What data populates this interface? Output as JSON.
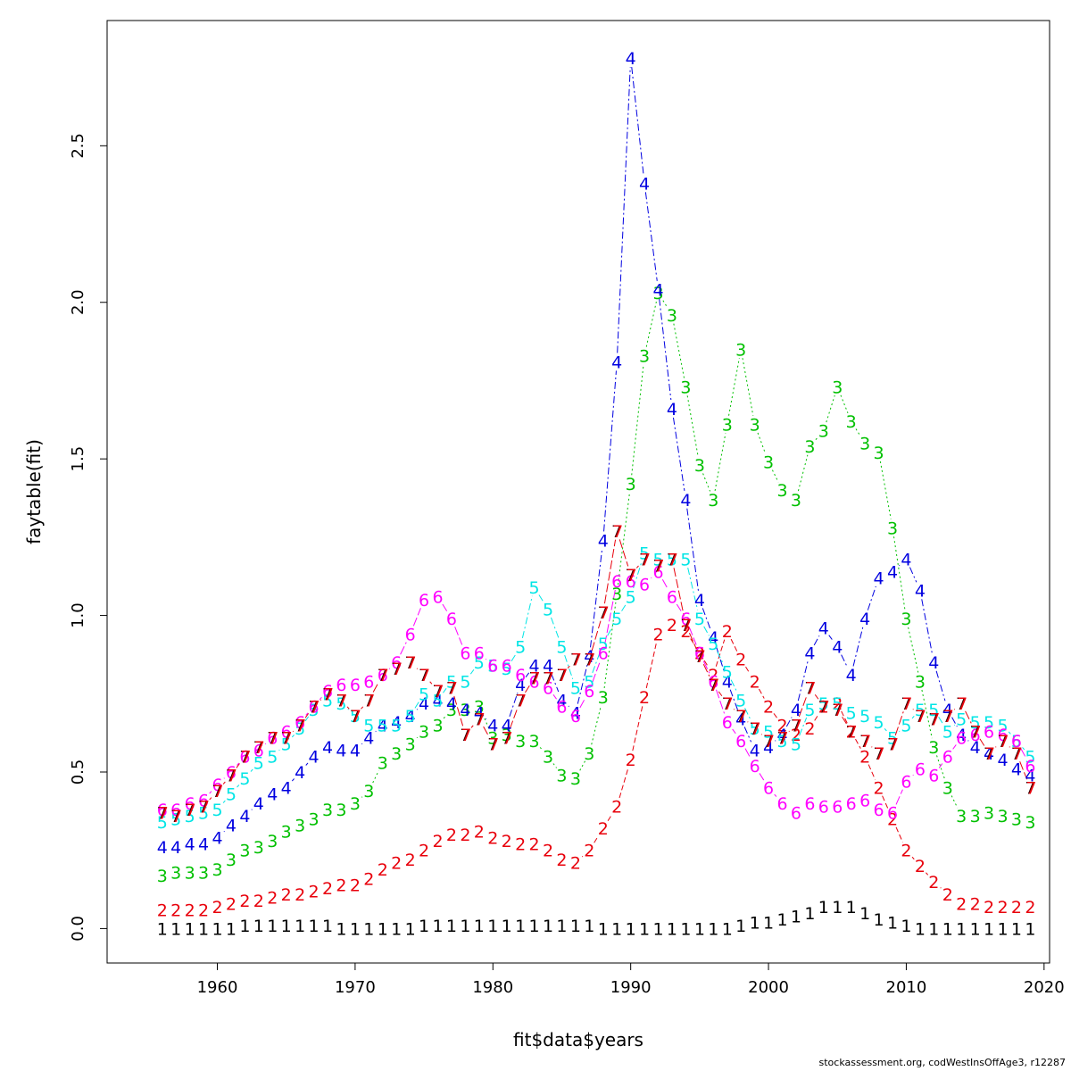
{
  "chart_data": {
    "type": "line",
    "xlabel": "fit$data$years",
    "ylabel": "faytable(fit)",
    "xlim": [
      1952.0,
      2020.4
    ],
    "ylim": [
      -0.11,
      2.9
    ],
    "x_ticks": [
      1960,
      1970,
      1980,
      1990,
      2000,
      2010,
      2020
    ],
    "y_ticks": [
      0.0,
      0.5,
      1.0,
      1.5,
      2.0,
      2.5
    ],
    "y_tick_labels": [
      "0.0",
      "0.5",
      "1.0",
      "1.5",
      "2.0",
      "2.5"
    ],
    "x": [
      1956,
      1957,
      1958,
      1959,
      1960,
      1961,
      1962,
      1963,
      1964,
      1965,
      1966,
      1967,
      1968,
      1969,
      1970,
      1971,
      1972,
      1973,
      1974,
      1975,
      1976,
      1977,
      1978,
      1979,
      1980,
      1981,
      1982,
      1983,
      1984,
      1985,
      1986,
      1987,
      1988,
      1989,
      1990,
      1991,
      1992,
      1993,
      1994,
      1995,
      1996,
      1997,
      1998,
      1999,
      2000,
      2001,
      2002,
      2003,
      2004,
      2005,
      2006,
      2007,
      2008,
      2009,
      2010,
      2011,
      2012,
      2013,
      2014,
      2015,
      2016,
      2017,
      2018,
      2019
    ],
    "series": [
      {
        "name": "1",
        "color": "#000000",
        "dash": "2,3",
        "values": [
          0.0,
          0.0,
          0.0,
          0.0,
          0.0,
          0.0,
          0.01,
          0.01,
          0.01,
          0.01,
          0.01,
          0.01,
          0.01,
          0.0,
          0.0,
          0.0,
          0.0,
          0.0,
          0.0,
          0.01,
          0.01,
          0.01,
          0.01,
          0.01,
          0.01,
          0.01,
          0.01,
          0.01,
          0.01,
          0.01,
          0.01,
          0.01,
          0.0,
          0.0,
          0.0,
          0.0,
          0.0,
          0.0,
          0.0,
          0.0,
          0.0,
          0.0,
          0.01,
          0.02,
          0.02,
          0.03,
          0.04,
          0.05,
          0.07,
          0.07,
          0.07,
          0.05,
          0.03,
          0.02,
          0.01,
          0.0,
          0.0,
          0.0,
          0.0,
          0.0,
          0.0,
          0.0,
          0.0,
          0.0
        ]
      },
      {
        "name": "2",
        "color": "#e8000b",
        "dash": "6,3",
        "values": [
          0.06,
          0.06,
          0.06,
          0.06,
          0.07,
          0.08,
          0.09,
          0.09,
          0.1,
          0.11,
          0.11,
          0.12,
          0.13,
          0.14,
          0.14,
          0.16,
          0.19,
          0.21,
          0.22,
          0.25,
          0.28,
          0.3,
          0.3,
          0.31,
          0.29,
          0.28,
          0.27,
          0.27,
          0.25,
          0.22,
          0.21,
          0.25,
          0.32,
          0.39,
          0.54,
          0.74,
          0.94,
          0.97,
          0.95,
          0.88,
          0.81,
          0.95,
          0.86,
          0.79,
          0.71,
          0.65,
          0.62,
          0.64,
          0.71,
          0.72,
          0.63,
          0.55,
          0.45,
          0.35,
          0.25,
          0.2,
          0.15,
          0.11,
          0.08,
          0.08,
          0.07,
          0.07,
          0.07,
          0.07
        ]
      },
      {
        "name": "3",
        "color": "#00c000",
        "dash": "2,3",
        "values": [
          0.17,
          0.18,
          0.18,
          0.18,
          0.19,
          0.22,
          0.25,
          0.26,
          0.28,
          0.31,
          0.33,
          0.35,
          0.38,
          0.38,
          0.4,
          0.44,
          0.53,
          0.56,
          0.59,
          0.63,
          0.65,
          0.7,
          0.7,
          0.71,
          0.61,
          0.62,
          0.6,
          0.6,
          0.55,
          0.49,
          0.48,
          0.56,
          0.74,
          1.07,
          1.42,
          1.83,
          2.03,
          1.96,
          1.73,
          1.48,
          1.37,
          1.61,
          1.85,
          1.61,
          1.49,
          1.4,
          1.37,
          1.54,
          1.59,
          1.73,
          1.62,
          1.55,
          1.52,
          1.28,
          0.99,
          0.79,
          0.58,
          0.45,
          0.36,
          0.36,
          0.37,
          0.36,
          0.35,
          0.34
        ]
      },
      {
        "name": "4",
        "color": "#0000e0",
        "dash": "8,3,2,3",
        "values": [
          0.26,
          0.26,
          0.27,
          0.27,
          0.29,
          0.33,
          0.36,
          0.4,
          0.43,
          0.45,
          0.5,
          0.55,
          0.58,
          0.57,
          0.57,
          0.61,
          0.65,
          0.66,
          0.68,
          0.72,
          0.73,
          0.72,
          0.7,
          0.69,
          0.65,
          0.65,
          0.78,
          0.84,
          0.84,
          0.73,
          0.69,
          0.87,
          1.24,
          1.81,
          2.78,
          2.38,
          2.04,
          1.66,
          1.37,
          1.05,
          0.93,
          0.79,
          0.67,
          0.57,
          0.58,
          0.62,
          0.7,
          0.88,
          0.96,
          0.9,
          0.81,
          0.99,
          1.12,
          1.14,
          1.18,
          1.08,
          0.85,
          0.7,
          0.62,
          0.58,
          0.56,
          0.54,
          0.51,
          0.49
        ]
      },
      {
        "name": "5",
        "color": "#00e5e5",
        "dash": "8,3,2,3",
        "values": [
          0.34,
          0.35,
          0.36,
          0.37,
          0.38,
          0.43,
          0.48,
          0.53,
          0.55,
          0.59,
          0.64,
          0.7,
          0.73,
          0.72,
          0.68,
          0.65,
          0.65,
          0.65,
          0.68,
          0.75,
          0.73,
          0.79,
          0.79,
          0.85,
          0.84,
          0.83,
          0.9,
          1.09,
          1.02,
          0.9,
          0.77,
          0.79,
          0.91,
          0.99,
          1.06,
          1.2,
          1.18,
          1.18,
          1.18,
          0.99,
          0.91,
          0.82,
          0.73,
          0.64,
          0.63,
          0.6,
          0.59,
          0.7,
          0.72,
          0.72,
          0.69,
          0.68,
          0.66,
          0.61,
          0.65,
          0.7,
          0.7,
          0.63,
          0.67,
          0.66,
          0.66,
          0.65,
          0.6,
          0.55
        ]
      },
      {
        "name": "6",
        "color": "#ff00ff",
        "dash": "10,3",
        "values": [
          0.38,
          0.38,
          0.4,
          0.41,
          0.46,
          0.5,
          0.55,
          0.57,
          0.61,
          0.63,
          0.66,
          0.71,
          0.76,
          0.78,
          0.78,
          0.79,
          0.81,
          0.85,
          0.94,
          1.05,
          1.06,
          0.99,
          0.88,
          0.88,
          0.84,
          0.84,
          0.81,
          0.79,
          0.77,
          0.71,
          0.68,
          0.76,
          0.88,
          1.11,
          1.11,
          1.1,
          1.14,
          1.06,
          0.99,
          0.88,
          0.79,
          0.66,
          0.6,
          0.52,
          0.45,
          0.4,
          0.37,
          0.4,
          0.39,
          0.39,
          0.4,
          0.41,
          0.38,
          0.37,
          0.47,
          0.51,
          0.49,
          0.55,
          0.61,
          0.62,
          0.63,
          0.62,
          0.6,
          0.52
        ]
      },
      {
        "name": "7",
        "color": "#e8000b",
        "dash": "10,3",
        "values": [
          0.37,
          0.36,
          0.38,
          0.39,
          0.44,
          0.49,
          0.55,
          0.58,
          0.61,
          0.61,
          0.65,
          0.71,
          0.75,
          0.73,
          0.68,
          0.73,
          0.81,
          0.83,
          0.85,
          0.81,
          0.76,
          0.77,
          0.62,
          0.67,
          0.59,
          0.61,
          0.73,
          0.8,
          0.8,
          0.81,
          0.86,
          0.86,
          1.01,
          1.27,
          1.13,
          1.18,
          1.16,
          1.18,
          0.97,
          0.87,
          0.78,
          0.72,
          0.68,
          0.64,
          0.6,
          0.61,
          0.65,
          0.77,
          0.71,
          0.7,
          0.63,
          0.6,
          0.56,
          0.59,
          0.72,
          0.68,
          0.67,
          0.68,
          0.72,
          0.63,
          0.56,
          0.6,
          0.56,
          0.45
        ]
      }
    ],
    "overlay_label": {
      "text": "7",
      "color": "#000000",
      "over_series": "7"
    }
  },
  "footer": {
    "credit": "stockassessment.org, codWestInsOffAge3, r12287"
  }
}
